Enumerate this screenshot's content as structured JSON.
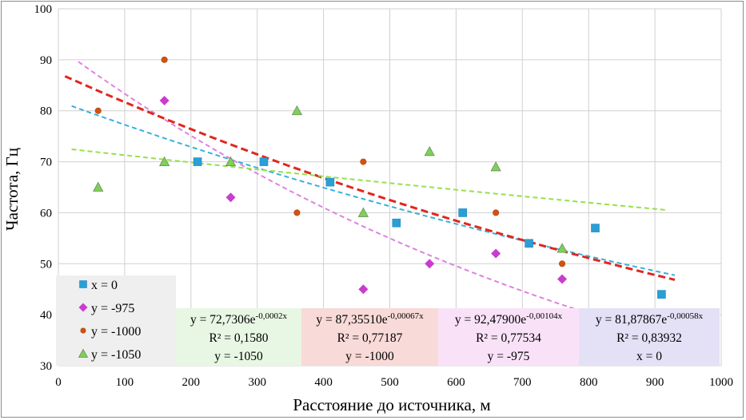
{
  "chart_data": {
    "type": "scatter",
    "xlabel": "Расстояние до источника, м",
    "ylabel": "Частота,  Гц",
    "xlim": [
      0,
      1000
    ],
    "ylim": [
      30,
      100
    ],
    "x_ticks": [
      "0",
      "100",
      "200",
      "300",
      "400",
      "500",
      "600",
      "700",
      "800",
      "900",
      "1000"
    ],
    "y_ticks": [
      "30",
      "40",
      "50",
      "60",
      "70",
      "80",
      "90",
      "100"
    ],
    "grid": true,
    "legend_position": "bottom-left",
    "series": [
      {
        "name": "x = 0",
        "marker": "square",
        "color": "#2a9fd6",
        "x": [
          210,
          310,
          410,
          510,
          610,
          710,
          810,
          910
        ],
        "y": [
          70,
          70,
          66,
          58,
          60,
          54,
          57,
          44
        ],
        "trend": {
          "a": 81.87867,
          "b": -0.00058,
          "x_range": [
            20,
            930
          ],
          "color": "#38b0dc"
        }
      },
      {
        "name": "y = -975",
        "marker": "diamond",
        "color": "#c93ccf",
        "x": [
          160,
          260,
          460,
          560,
          660,
          760
        ],
        "y": [
          82,
          63,
          45,
          50,
          52,
          47
        ],
        "trend": {
          "a": 92.479,
          "b": -0.00104,
          "x_range": [
            30,
            800
          ],
          "color": "#de82e0"
        }
      },
      {
        "name": "y = -1000",
        "marker": "circle",
        "color": "#d4520f",
        "x": [
          60,
          160,
          360,
          460,
          660,
          760
        ],
        "y": [
          80,
          90,
          60,
          70,
          60,
          50
        ],
        "trend": {
          "a": 87.3551,
          "b": -0.00067,
          "x_range": [
            10,
            930
          ],
          "color": "#e0271f"
        }
      },
      {
        "name": "y = -1050",
        "marker": "triangle",
        "color": "#7fcf58",
        "x": [
          60,
          160,
          260,
          360,
          460,
          560,
          660,
          760
        ],
        "y": [
          65,
          70,
          70,
          80,
          60,
          72,
          69,
          53
        ],
        "trend": {
          "a": 72.7306,
          "b": -0.0002,
          "x_range": [
            20,
            920
          ],
          "color": "#96e04a"
        }
      }
    ],
    "annotations": [
      {
        "equation": "y = 72,7306e",
        "exponent": "-0,0002x",
        "r2": "R² = 0,1580",
        "label": "y = -1050",
        "bg": "#e8f7e4"
      },
      {
        "equation": "y = 87,35510e",
        "exponent": "-0,00067x",
        "r2": "R² = 0,77187",
        "label": "y = -1000",
        "bg": "#f8dad8"
      },
      {
        "equation": "y = 92,47900e",
        "exponent": "-0,00104x",
        "r2": "R² = 0,77534",
        "label": "y = -975",
        "bg": "#f9e2f8"
      },
      {
        "equation": "y = 81,87867e",
        "exponent": "-0,00058x",
        "r2": "R² = 0,83932",
        "label": "x = 0",
        "bg": "#e4e0f6"
      }
    ]
  }
}
